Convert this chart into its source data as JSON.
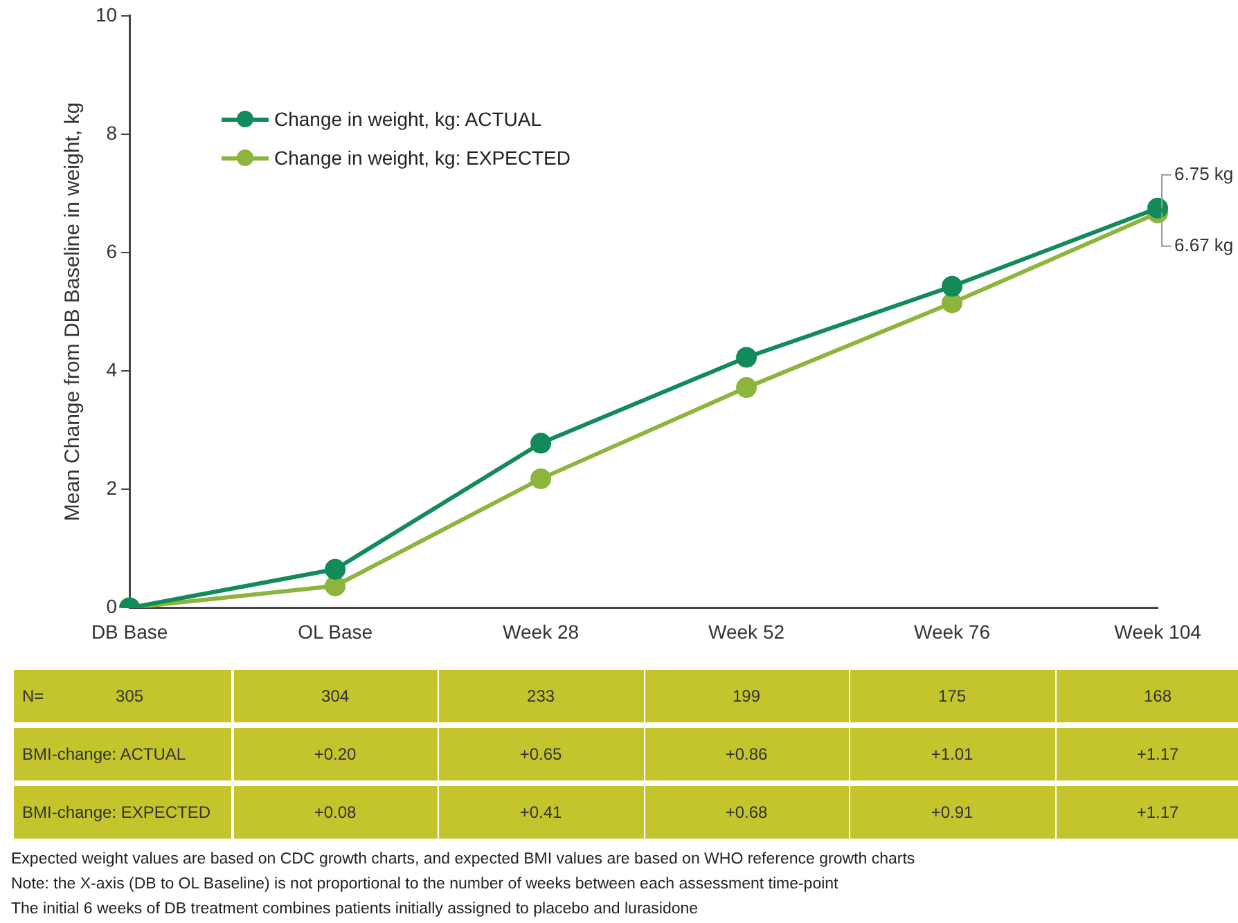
{
  "chart_data": [
    {
      "type": "line",
      "categories": [
        "DB Base",
        "OL Base",
        "Week 28",
        "Week 52",
        "Week 76",
        "Week 104"
      ],
      "ylabel": "Mean Change from DB Baseline in weight, kg",
      "ylim": [
        0,
        10
      ],
      "yticks": [
        0,
        2,
        4,
        6,
        8,
        10
      ],
      "grid": false,
      "legend": "top left",
      "marker": "circle",
      "series": [
        {
          "name": "Change in weight, kg: ACTUAL",
          "color": "#138a5a",
          "values": [
            0,
            0.65,
            2.78,
            4.23,
            5.43,
            6.75
          ]
        },
        {
          "name": "Change in weight, kg: EXPECTED",
          "color": "#8db43c",
          "values": [
            0,
            0.37,
            2.18,
            3.72,
            5.15,
            6.67
          ]
        }
      ],
      "annotations": [
        {
          "text": "6.75 kg",
          "x": "Week 104",
          "y": 6.75
        },
        {
          "text": "6.67 kg",
          "x": "Week 104",
          "y": 6.67
        }
      ]
    },
    {
      "type": "heatmap",
      "categories": [
        null,
        null,
        null,
        null,
        null,
        null
      ],
      "y_categories": [
        "N=",
        "BMI-change: ACTUAL",
        "BMI-change: EXPECTED"
      ],
      "cells": [
        [
          305,
          304,
          233,
          199,
          175,
          168
        ],
        [
          null,
          0.2,
          0.65,
          0.86,
          1.01,
          1.17
        ],
        [
          null,
          0.08,
          0.41,
          0.68,
          0.91,
          1.17
        ]
      ],
      "cell_labels": [
        [
          "305",
          "304",
          "233",
          "199",
          "175",
          "168"
        ],
        [
          null,
          "+0.20",
          "+0.65",
          "+0.86",
          "+1.01",
          "+1.17"
        ],
        [
          null,
          "+0.08",
          "+0.41",
          "+0.68",
          "+0.91",
          "+1.17"
        ]
      ],
      "annotations": [
        "Expected weight values are based on CDC growth charts, and expected BMI values are based on WHO reference growth charts",
        "Note: the X-axis (DB to OL Baseline) is not proportional to the number of weeks between each assessment time-point",
        "The initial 6 weeks of DB treatment combines patients initially assigned to placebo and lurasidone"
      ]
    }
  ]
}
